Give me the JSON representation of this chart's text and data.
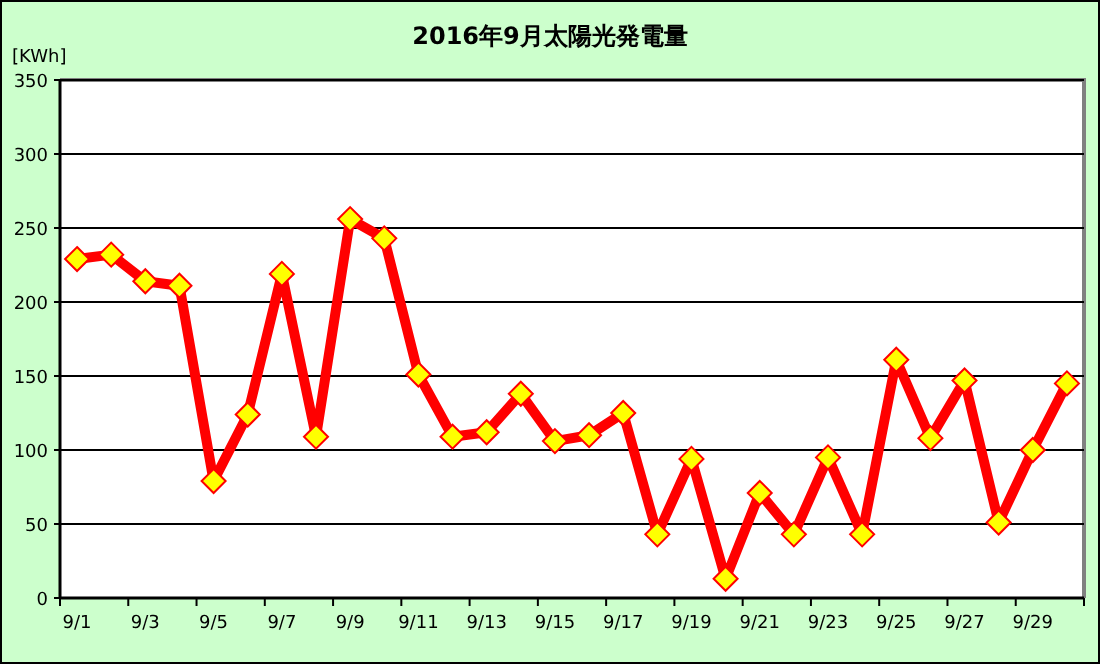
{
  "chart_data": {
    "type": "line",
    "title": "2016年9月太陽光発電量",
    "ylabel": "[KWh]",
    "categories": [
      "9/1",
      null,
      "9/3",
      null,
      "9/5",
      null,
      "9/7",
      null,
      "9/9",
      null,
      "9/11",
      null,
      "9/13",
      null,
      "9/15",
      null,
      "9/17",
      null,
      "9/19",
      null,
      "9/21",
      null,
      "9/23",
      null,
      "9/25",
      null,
      "9/27",
      null,
      "9/29",
      null
    ],
    "series": [
      {
        "color": "#ff0000",
        "values": [
          229,
          232,
          214,
          211,
          79,
          124,
          219,
          109,
          256,
          243,
          151,
          109,
          112,
          138,
          106,
          110,
          125,
          43,
          94,
          13,
          71,
          43,
          95,
          43,
          161,
          108,
          147,
          51,
          100,
          145
        ]
      }
    ],
    "ylim": [
      0,
      350
    ],
    "yticks": [
      0,
      50,
      100,
      150,
      200,
      250,
      300,
      350
    ],
    "grid": "y",
    "marker": "diamond",
    "line_style": "solid"
  }
}
